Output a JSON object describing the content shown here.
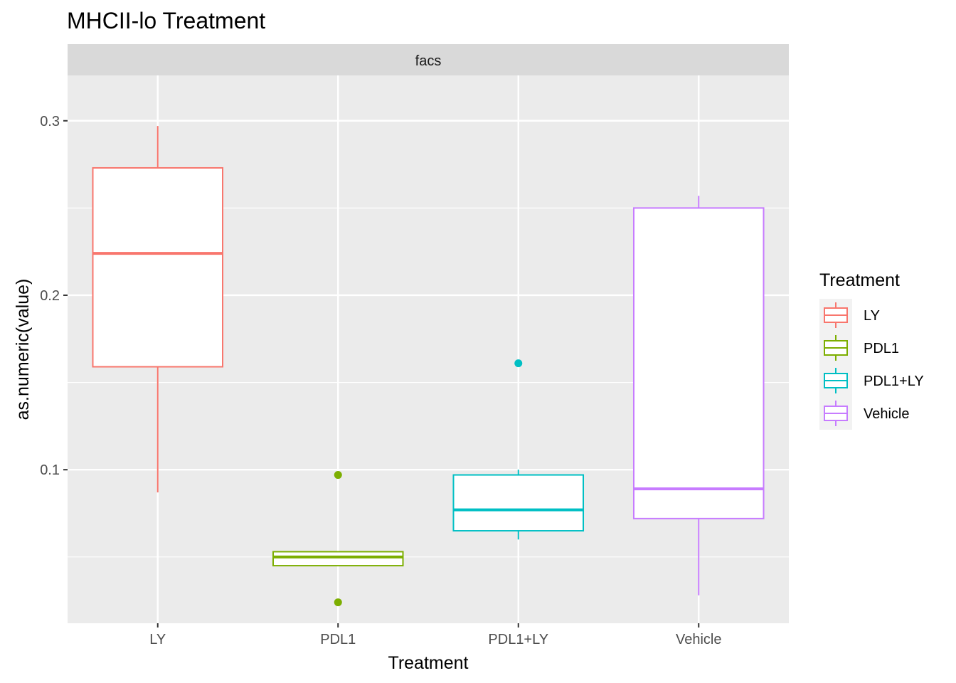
{
  "chart_data": {
    "type": "box",
    "title": "MHCII-lo Treatment",
    "facet": "facs",
    "xlabel": "Treatment",
    "ylabel": "as.numeric(value)",
    "categories": [
      "LY",
      "PDL1",
      "PDL1+LY",
      "Vehicle"
    ],
    "ylim": [
      0.012,
      0.326
    ],
    "y_ticks": [
      0.1,
      0.2,
      0.3
    ],
    "y_tick_labels": [
      "0.1",
      "0.2",
      "0.3"
    ],
    "y_minor_ticks": [
      0.05,
      0.15,
      0.25
    ],
    "grid": true,
    "legend": {
      "title": "Treatment",
      "position": "right",
      "entries": [
        "LY",
        "PDL1",
        "PDL1+LY",
        "Vehicle"
      ]
    },
    "colors": {
      "LY": "#F8766D",
      "PDL1": "#7CAE00",
      "PDL1+LY": "#00BFC4",
      "Vehicle": "#C77CFF"
    },
    "boxes": [
      {
        "name": "LY",
        "whisker_low": 0.087,
        "q1": 0.159,
        "median": 0.224,
        "q3": 0.273,
        "whisker_high": 0.297,
        "outliers": []
      },
      {
        "name": "PDL1",
        "whisker_low": 0.045,
        "q1": 0.045,
        "median": 0.05,
        "q3": 0.053,
        "whisker_high": 0.053,
        "outliers": [
          0.024,
          0.097
        ]
      },
      {
        "name": "PDL1+LY",
        "whisker_low": 0.06,
        "q1": 0.065,
        "median": 0.077,
        "q3": 0.097,
        "whisker_high": 0.1,
        "outliers": [
          0.161
        ]
      },
      {
        "name": "Vehicle",
        "whisker_low": 0.028,
        "q1": 0.072,
        "median": 0.089,
        "q3": 0.25,
        "whisker_high": 0.257,
        "outliers": []
      }
    ]
  }
}
